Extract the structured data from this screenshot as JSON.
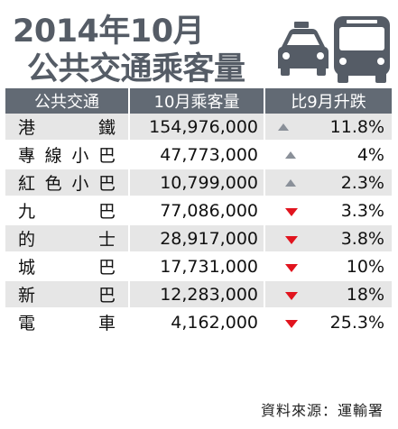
{
  "chart_data": {
    "type": "table",
    "title_line1": "2014年10月",
    "title_line2": "公共交通乘客量",
    "columns": [
      "公共交通",
      "10月乘客量",
      "比9月升跌"
    ],
    "rows": [
      {
        "mode": "港　鐵",
        "passengers": "154,976,000",
        "change": "11.8%",
        "direction": "up"
      },
      {
        "mode": "專線小巴",
        "passengers": "47,773,000",
        "change": "4%",
        "direction": "up"
      },
      {
        "mode": "紅色小巴",
        "passengers": "10,799,000",
        "change": "2.3%",
        "direction": "up"
      },
      {
        "mode": "九　巴",
        "passengers": "77,086,000",
        "change": "3.3%",
        "direction": "down"
      },
      {
        "mode": "的　士",
        "passengers": "28,917,000",
        "change": "3.8%",
        "direction": "down"
      },
      {
        "mode": "城　巴",
        "passengers": "17,731,000",
        "change": "10%",
        "direction": "down"
      },
      {
        "mode": "新　巴",
        "passengers": "12,283,000",
        "change": "18%",
        "direction": "down"
      },
      {
        "mode": "電　車",
        "passengers": "4,162,000",
        "change": "25.3%",
        "direction": "down"
      }
    ],
    "source": "資料來源：運輸署",
    "colors": {
      "header_bg": "#626a74",
      "row_shade": "#e6e6e6",
      "up_arrow": "#8a9099",
      "down_arrow": "#e1141e",
      "title": "#555c66"
    }
  },
  "icons": [
    "taxi-icon",
    "bus-icon"
  ]
}
